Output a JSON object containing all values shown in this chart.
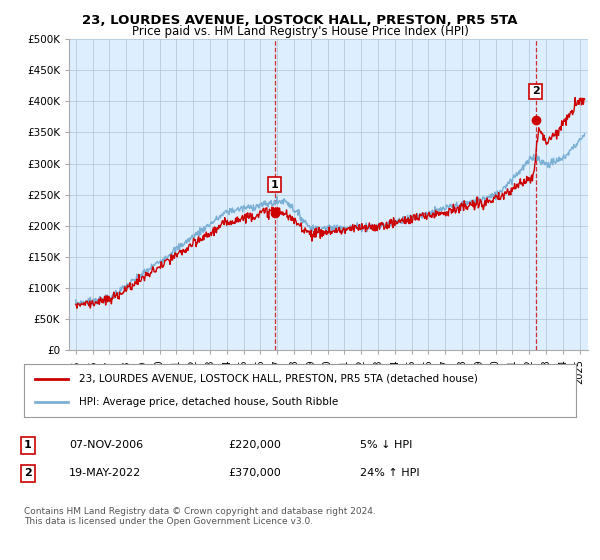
{
  "title": "23, LOURDES AVENUE, LOSTOCK HALL, PRESTON, PR5 5TA",
  "subtitle": "Price paid vs. HM Land Registry's House Price Index (HPI)",
  "ylabel_ticks": [
    "£0",
    "£50K",
    "£100K",
    "£150K",
    "£200K",
    "£250K",
    "£300K",
    "£350K",
    "£400K",
    "£450K",
    "£500K"
  ],
  "ytick_values": [
    0,
    50000,
    100000,
    150000,
    200000,
    250000,
    300000,
    350000,
    400000,
    450000,
    500000
  ],
  "ylim": [
    0,
    500000
  ],
  "xlim_start": 1994.6,
  "xlim_end": 2025.5,
  "sale1_date": 2006.85,
  "sale1_price": 220000,
  "sale1_label": "1",
  "sale2_date": 2022.38,
  "sale2_price": 370000,
  "sale2_label": "2",
  "legend_line1": "23, LOURDES AVENUE, LOSTOCK HALL, PRESTON, PR5 5TA (detached house)",
  "legend_line2": "HPI: Average price, detached house, South Ribble",
  "table_row1_date": "07-NOV-2006",
  "table_row1_price": "£220,000",
  "table_row1_pct": "5% ↓ HPI",
  "table_row2_date": "19-MAY-2022",
  "table_row2_price": "£370,000",
  "table_row2_pct": "24% ↑ HPI",
  "footer": "Contains HM Land Registry data © Crown copyright and database right 2024.\nThis data is licensed under the Open Government Licence v3.0.",
  "hpi_color": "#7bafd4",
  "price_color": "#cc0000",
  "bg_fill_color": "#ddeeff",
  "vline_color": "#cc0000",
  "background_color": "#ffffff",
  "grid_color": "#b0c4d8",
  "xticks": [
    1995,
    1996,
    1997,
    1998,
    1999,
    2000,
    2001,
    2002,
    2003,
    2004,
    2005,
    2006,
    2007,
    2008,
    2009,
    2010,
    2011,
    2012,
    2013,
    2014,
    2015,
    2016,
    2017,
    2018,
    2019,
    2020,
    2021,
    2022,
    2023,
    2024,
    2025
  ]
}
